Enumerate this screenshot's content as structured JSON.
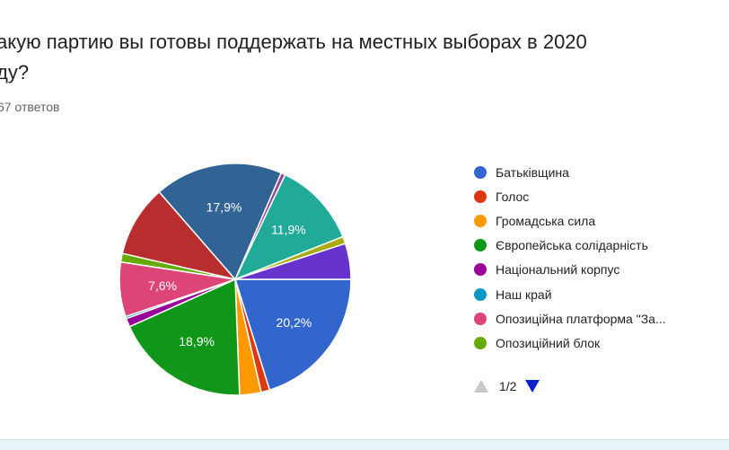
{
  "question": {
    "title": "акую партию вы готовы поддержать на местных выборах в 2020\nду?",
    "responses": "67 ответов"
  },
  "legend": {
    "items": [
      {
        "label": "Батьківщина",
        "color": "#3366cc"
      },
      {
        "label": "Голос",
        "color": "#dc3912"
      },
      {
        "label": "Громадська сила",
        "color": "#ff9900"
      },
      {
        "label": "Європейська солідарність",
        "color": "#109618"
      },
      {
        "label": "Національний корпус",
        "color": "#990099"
      },
      {
        "label": "Наш край",
        "color": "#0099c6"
      },
      {
        "label": "Опозиційна платформа \"За...",
        "color": "#dd4477"
      },
      {
        "label": "Опозиційний блок",
        "color": "#66aa00"
      }
    ],
    "page": "1/2",
    "prev_icon": "triangle-up-icon",
    "next_icon": "triangle-down-icon",
    "prev_color": "#c8c8c8",
    "next_color": "#0d1fcc"
  },
  "chart_data": {
    "type": "pie",
    "title": "",
    "start_angle_deg": 90,
    "slices": [
      {
        "value": 20.2,
        "label": "20,2%",
        "color": "#3366cc"
      },
      {
        "value": 1.2,
        "label": "",
        "color": "#dc3912"
      },
      {
        "value": 3.0,
        "label": "",
        "color": "#ff9900"
      },
      {
        "value": 18.9,
        "label": "18,9%",
        "color": "#109618"
      },
      {
        "value": 1.2,
        "label": "",
        "color": "#990099"
      },
      {
        "value": 0.3,
        "label": "",
        "color": "#0099c6"
      },
      {
        "value": 7.6,
        "label": "7,6%",
        "color": "#dd4477"
      },
      {
        "value": 1.2,
        "label": "",
        "color": "#66aa00"
      },
      {
        "value": 10.0,
        "label": "",
        "color": "#b82e2e"
      },
      {
        "value": 17.9,
        "label": "17,9%",
        "color": "#316395"
      },
      {
        "value": 0.6,
        "label": "",
        "color": "#994499"
      },
      {
        "value": 11.9,
        "label": "11,9%",
        "color": "#22aa99"
      },
      {
        "value": 1.0,
        "label": "",
        "color": "#aaaa11"
      },
      {
        "value": 5.0,
        "label": "",
        "color": "#6633cc"
      }
    ]
  }
}
